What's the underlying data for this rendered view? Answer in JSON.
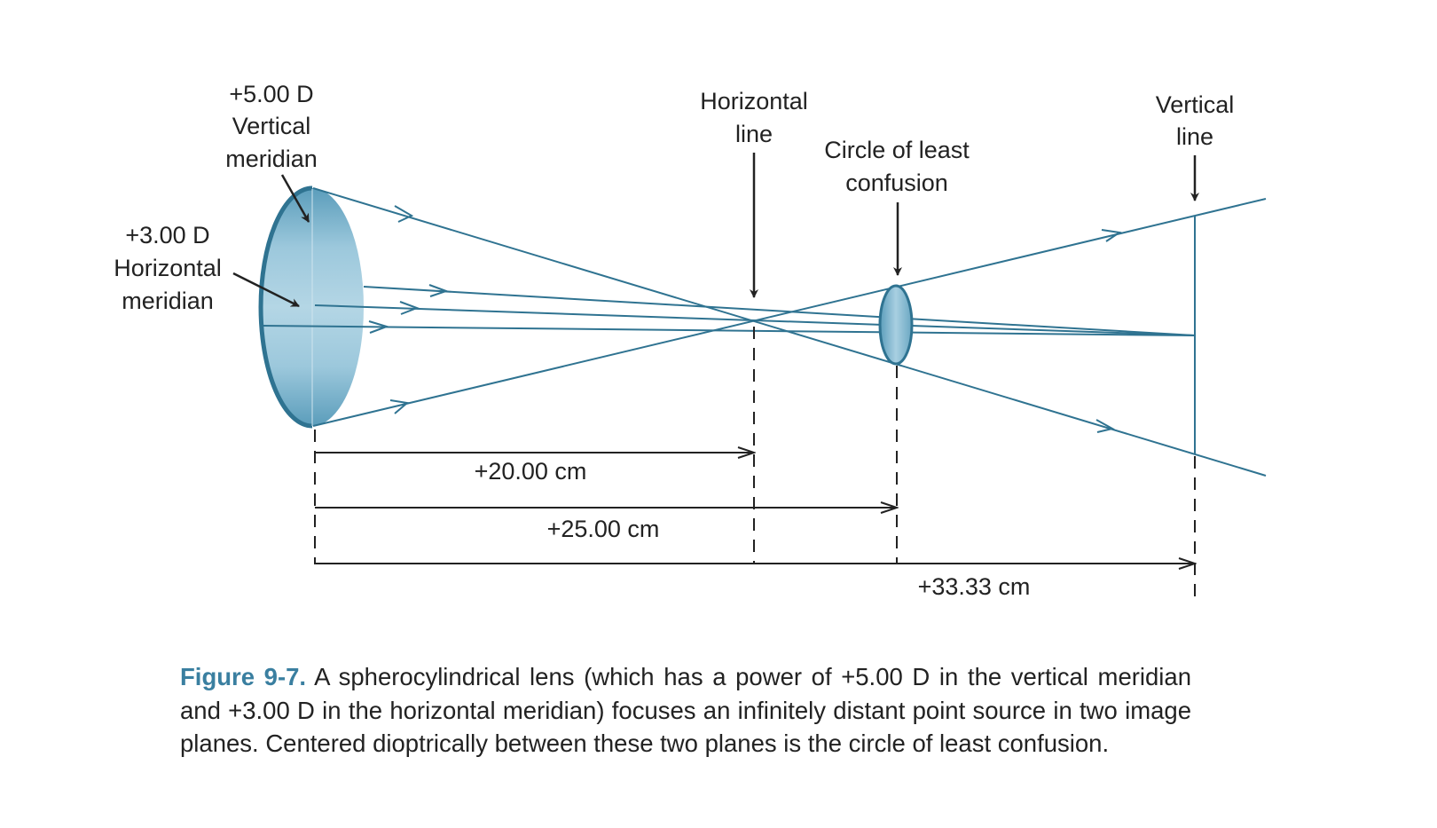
{
  "labels": {
    "vertical_meridian": [
      "+5.00 D",
      "Vertical",
      "meridian"
    ],
    "horizontal_meridian": [
      "+3.00 D",
      "Horizontal",
      "meridian"
    ],
    "horizontal_line": [
      "Horizontal",
      "line"
    ],
    "circle_least_confusion": [
      "Circle of least",
      "confusion"
    ],
    "vertical_line": [
      "Vertical",
      "line"
    ]
  },
  "distances": {
    "d1": "+20.00 cm",
    "d2": "+25.00 cm",
    "d3": "+33.33 cm"
  },
  "caption": {
    "figure_label": "Figure 9-7.",
    "text": " A spherocylindrical lens (which has a power of +5.00 D in the vertical meridian and +3.00 D in the horizontal meridian) focuses an infinitely distant point source in two image planes. Centered dioptrically between these two planes is the circle of least confusion."
  },
  "colors": {
    "ray": "#2f7391",
    "lens": "#8fc0d6",
    "figure_label": "#3a7fa0"
  }
}
